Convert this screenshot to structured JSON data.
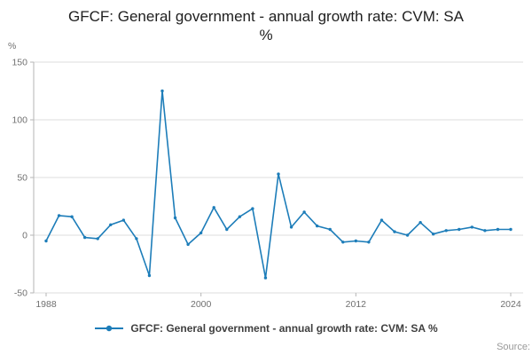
{
  "title": {
    "line1": "GFCF: General government - annual growth rate: CVM: SA",
    "line2": "%"
  },
  "y_unit": "%",
  "legend": {
    "label": "GFCF: General government - annual growth rate: CVM: SA %"
  },
  "source": {
    "label": "Source:"
  },
  "colors": {
    "line": "#1d7db9",
    "grid": "#dcdcdc",
    "axis": "#b5b5b5",
    "tick_text": "#707070",
    "title_text": "#202020",
    "legend_text": "#3f3f3f",
    "source_text": "#999999"
  },
  "chart_data": {
    "type": "line",
    "title": "GFCF: General government - annual growth rate: CVM: SA %",
    "xlabel": "",
    "ylabel": "%",
    "ylim": [
      -50,
      150
    ],
    "yticks": [
      -50,
      0,
      50,
      100,
      150
    ],
    "xticks": [
      1988,
      2000,
      2012,
      2024
    ],
    "grid": true,
    "legend_position": "bottom",
    "x": [
      1988,
      1989,
      1990,
      1991,
      1992,
      1993,
      1994,
      1995,
      1996,
      1997,
      1998,
      1999,
      2000,
      2001,
      2002,
      2003,
      2004,
      2005,
      2006,
      2007,
      2008,
      2009,
      2010,
      2011,
      2012,
      2013,
      2014,
      2015,
      2016,
      2017,
      2018,
      2019,
      2020,
      2021,
      2022,
      2023,
      2024
    ],
    "values": [
      -5,
      17,
      16,
      -2,
      -3,
      9,
      13,
      -3,
      -35,
      125,
      15,
      -8,
      2,
      24,
      5,
      16,
      23,
      -37,
      53,
      7,
      20,
      8,
      5,
      -6,
      -5,
      -6,
      13,
      3,
      0,
      11,
      1,
      4,
      5,
      7,
      4,
      5,
      5
    ]
  }
}
